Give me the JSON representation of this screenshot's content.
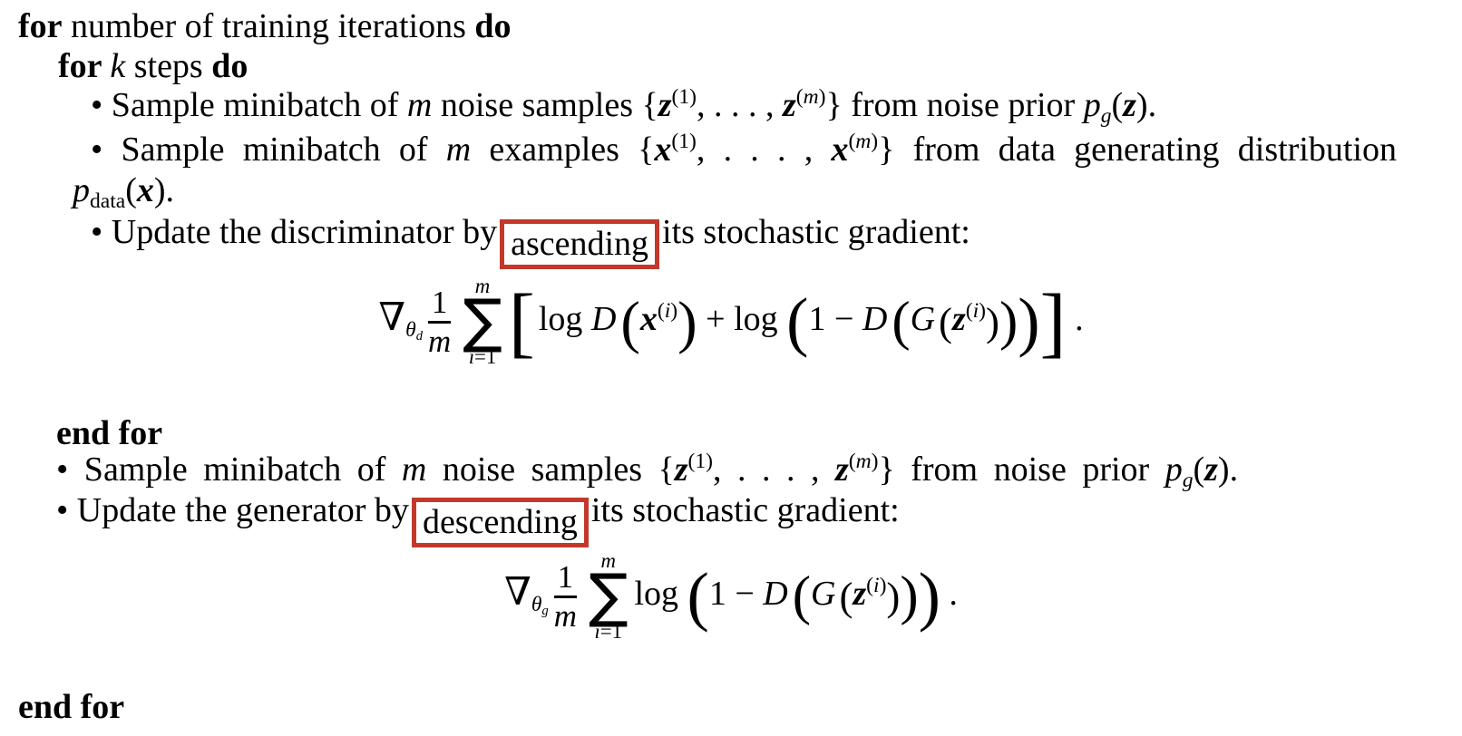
{
  "page": {
    "background": "#ffffff",
    "text_color": "#000000",
    "highlight_color": "#c2392b"
  },
  "lines": {
    "for_outer": [
      {
        "t": "b",
        "v": "for"
      },
      {
        "t": "txt",
        "v": " number of training iterations "
      },
      {
        "t": "b",
        "v": "do"
      }
    ],
    "for_inner": [
      {
        "t": "b",
        "v": "for "
      },
      {
        "t": "i",
        "v": "k"
      },
      {
        "t": "txt",
        "v": " steps "
      },
      {
        "t": "b",
        "v": "do"
      }
    ],
    "sample_noise1": [
      {
        "t": "txt",
        "v": "• Sample minibatch of "
      },
      {
        "t": "i",
        "v": "m"
      },
      {
        "t": "txt",
        "v": " noise samples {"
      },
      {
        "t": "bi",
        "v": "z"
      },
      {
        "t": "sup",
        "s": [
          {
            "t": "txt",
            "v": "(1)"
          }
        ]
      },
      {
        "t": "txt",
        "v": ", . . . , "
      },
      {
        "t": "bi",
        "v": "z"
      },
      {
        "t": "sup",
        "s": [
          {
            "t": "txt",
            "v": "("
          },
          {
            "t": "i",
            "v": "m"
          },
          {
            "t": "txt",
            "v": ")"
          }
        ]
      },
      {
        "t": "txt",
        "v": "} from noise prior "
      },
      {
        "t": "i",
        "v": "p"
      },
      {
        "t": "sub",
        "s": [
          {
            "t": "i",
            "v": "g"
          }
        ]
      },
      {
        "t": "txt",
        "v": "("
      },
      {
        "t": "bi",
        "v": "z"
      },
      {
        "t": "txt",
        "v": ")."
      }
    ],
    "sample_data": [
      {
        "t": "txt",
        "v": "• Sample minibatch of "
      },
      {
        "t": "i",
        "v": "m"
      },
      {
        "t": "txt",
        "v": " examples {"
      },
      {
        "t": "bi",
        "v": "x"
      },
      {
        "t": "sup",
        "s": [
          {
            "t": "txt",
            "v": "(1)"
          }
        ]
      },
      {
        "t": "txt",
        "v": ", . . . , "
      },
      {
        "t": "bi",
        "v": "x"
      },
      {
        "t": "sup",
        "s": [
          {
            "t": "txt",
            "v": "("
          },
          {
            "t": "i",
            "v": "m"
          },
          {
            "t": "txt",
            "v": ")"
          }
        ]
      },
      {
        "t": "txt",
        "v": "} from data generating distribution"
      }
    ],
    "sample_data_cont": [
      {
        "t": "i",
        "v": "p"
      },
      {
        "t": "sub",
        "s": [
          {
            "t": "txt",
            "v": "data"
          }
        ]
      },
      {
        "t": "txt",
        "v": "("
      },
      {
        "t": "bi",
        "v": "x"
      },
      {
        "t": "txt",
        "v": ")."
      }
    ],
    "update_discriminator": [
      {
        "t": "txt",
        "v": "• Update the discriminator by"
      },
      {
        "t": "box",
        "s": [
          {
            "t": "txt",
            "v": "ascending"
          }
        ]
      },
      {
        "t": "txt",
        "v": "its stochastic gradient:"
      }
    ],
    "end_for_inner": [
      {
        "t": "b",
        "v": "end for"
      }
    ],
    "sample_noise2": [
      {
        "t": "txt",
        "v": "• Sample minibatch of "
      },
      {
        "t": "i",
        "v": "m"
      },
      {
        "t": "txt",
        "v": " noise samples {"
      },
      {
        "t": "bi",
        "v": "z"
      },
      {
        "t": "sup",
        "s": [
          {
            "t": "txt",
            "v": "(1)"
          }
        ]
      },
      {
        "t": "txt",
        "v": ", . . . , "
      },
      {
        "t": "bi",
        "v": "z"
      },
      {
        "t": "sup",
        "s": [
          {
            "t": "txt",
            "v": "("
          },
          {
            "t": "i",
            "v": "m"
          },
          {
            "t": "txt",
            "v": ")"
          }
        ]
      },
      {
        "t": "txt",
        "v": "} from noise prior "
      },
      {
        "t": "i",
        "v": "p"
      },
      {
        "t": "sub",
        "s": [
          {
            "t": "i",
            "v": "g"
          }
        ]
      },
      {
        "t": "txt",
        "v": "("
      },
      {
        "t": "bi",
        "v": "z"
      },
      {
        "t": "txt",
        "v": ")."
      }
    ],
    "update_generator": [
      {
        "t": "txt",
        "v": "• Update the generator by"
      },
      {
        "t": "box",
        "s": [
          {
            "t": "txt",
            "v": "descending"
          }
        ]
      },
      {
        "t": "txt",
        "v": "its stochastic gradient:"
      }
    ],
    "end_for_outer": [
      {
        "t": "b",
        "v": "end for"
      }
    ]
  },
  "formulas": {
    "discriminator": [
      {
        "t": "nabla",
        "v": "∇"
      },
      {
        "t": "sub",
        "s": [
          {
            "t": "i",
            "v": "θ"
          },
          {
            "t": "sub",
            "s": [
              {
                "t": "i",
                "v": "d"
              }
            ]
          }
        ]
      },
      {
        "t": "frac",
        "num": [
          {
            "t": "txt",
            "v": "1"
          }
        ],
        "den": [
          {
            "t": "i",
            "v": "m"
          }
        ]
      },
      {
        "t": "sum",
        "top": [
          {
            "t": "i",
            "v": "m"
          }
        ],
        "bot": [
          {
            "t": "i",
            "v": "i"
          },
          {
            "t": "txt",
            "v": "=1"
          }
        ]
      },
      {
        "t": "big",
        "v": "[",
        "fs": 2.3
      },
      {
        "t": "sp",
        "v": 4
      },
      {
        "t": "txt",
        "v": "log "
      },
      {
        "t": "i",
        "v": "D"
      },
      {
        "t": "sp",
        "v": 5
      },
      {
        "t": "big",
        "v": "(",
        "fs": 1.7
      },
      {
        "t": "bi",
        "v": "x"
      },
      {
        "t": "sup",
        "s": [
          {
            "t": "txt",
            "v": "("
          },
          {
            "t": "i",
            "v": "i"
          },
          {
            "t": "txt",
            "v": ")"
          }
        ]
      },
      {
        "t": "big",
        "v": ")",
        "fs": 1.7
      },
      {
        "t": "txt",
        "v": " + log "
      },
      {
        "t": "big",
        "v": "(",
        "fs": 1.92
      },
      {
        "t": "txt",
        "v": "1 − "
      },
      {
        "t": "i",
        "v": "D"
      },
      {
        "t": "sp",
        "v": 5
      },
      {
        "t": "big",
        "v": "(",
        "fs": 1.6
      },
      {
        "t": "i",
        "v": "G"
      },
      {
        "t": "sp",
        "v": 4
      },
      {
        "t": "big",
        "v": "(",
        "fs": 1.18
      },
      {
        "t": "bi",
        "v": "z"
      },
      {
        "t": "sup",
        "s": [
          {
            "t": "txt",
            "v": "("
          },
          {
            "t": "i",
            "v": "i"
          },
          {
            "t": "txt",
            "v": ")"
          }
        ]
      },
      {
        "t": "big",
        "v": ")",
        "fs": 1.18
      },
      {
        "t": "big",
        "v": ")",
        "fs": 1.6
      },
      {
        "t": "big",
        "v": ")",
        "fs": 1.92
      },
      {
        "t": "big",
        "v": "]",
        "fs": 2.3
      },
      {
        "t": "txt",
        "v": " ."
      }
    ],
    "generator": [
      {
        "t": "nabla",
        "v": "∇"
      },
      {
        "t": "sub",
        "s": [
          {
            "t": "i",
            "v": "θ"
          },
          {
            "t": "sub",
            "s": [
              {
                "t": "i",
                "v": "g"
              }
            ]
          }
        ]
      },
      {
        "t": "frac",
        "num": [
          {
            "t": "txt",
            "v": "1"
          }
        ],
        "den": [
          {
            "t": "i",
            "v": "m"
          }
        ]
      },
      {
        "t": "sum",
        "top": [
          {
            "t": "i",
            "v": "m"
          }
        ],
        "bot": [
          {
            "t": "i",
            "v": "i"
          },
          {
            "t": "txt",
            "v": "=1"
          }
        ]
      },
      {
        "t": "txt",
        "v": "log "
      },
      {
        "t": "big",
        "v": "(",
        "fs": 1.92
      },
      {
        "t": "txt",
        "v": "1 − "
      },
      {
        "t": "i",
        "v": "D"
      },
      {
        "t": "sp",
        "v": 5
      },
      {
        "t": "big",
        "v": "(",
        "fs": 1.6
      },
      {
        "t": "i",
        "v": "G"
      },
      {
        "t": "sp",
        "v": 4
      },
      {
        "t": "big",
        "v": "(",
        "fs": 1.18
      },
      {
        "t": "bi",
        "v": "z"
      },
      {
        "t": "sup",
        "s": [
          {
            "t": "txt",
            "v": "("
          },
          {
            "t": "i",
            "v": "i"
          },
          {
            "t": "txt",
            "v": ")"
          }
        ]
      },
      {
        "t": "big",
        "v": ")",
        "fs": 1.18
      },
      {
        "t": "big",
        "v": ")",
        "fs": 1.6
      },
      {
        "t": "big",
        "v": ")",
        "fs": 1.92
      },
      {
        "t": "txt",
        "v": " ."
      }
    ]
  }
}
